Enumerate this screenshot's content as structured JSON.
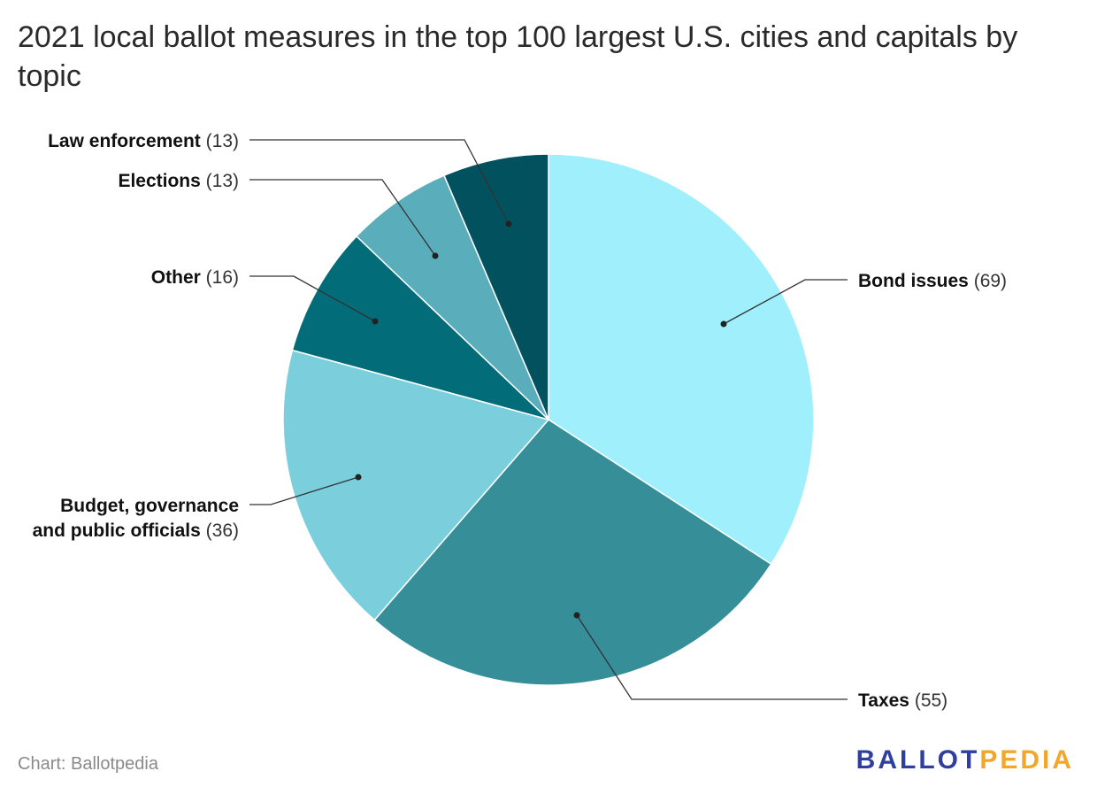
{
  "title": "2021 local ballot measures in the top 100 largest U.S. cities and capitals by topic",
  "source": "Chart: Ballotpedia",
  "logo": {
    "part1": "BALLOT",
    "part2": "PEDIA"
  },
  "chart_data": {
    "type": "pie",
    "title": "2021 local ballot measures in the top 100 largest U.S. cities and capitals by topic",
    "slices": [
      {
        "label": "Bond issues",
        "value": 69,
        "color": "#9feffc"
      },
      {
        "label": "Taxes",
        "value": 55,
        "color": "#368e99"
      },
      {
        "label": "Budget, governance and public officials",
        "label_lines": [
          "Budget, governance",
          "and public officials"
        ],
        "value": 36,
        "color": "#7bcfdd"
      },
      {
        "label": "Other",
        "value": 16,
        "color": "#026d78"
      },
      {
        "label": "Elections",
        "value": 13,
        "color": "#5aadbb"
      },
      {
        "label": "Law enforcement",
        "value": 13,
        "color": "#02515e"
      }
    ]
  }
}
